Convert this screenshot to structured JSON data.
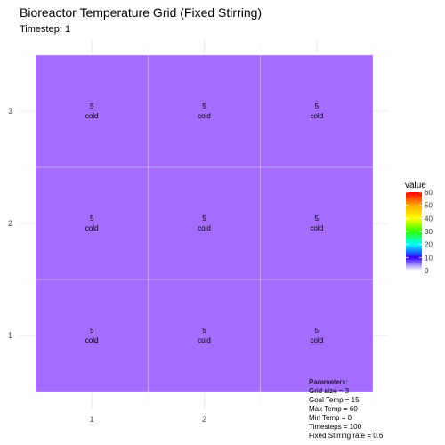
{
  "title": "Bioreactor Temperature Grid (Fixed Stirring)",
  "subtitle": "Timestep: 1",
  "chart_data": {
    "type": "heatmap",
    "x": [
      "1",
      "2",
      "3"
    ],
    "y": [
      "1",
      "2",
      "3"
    ],
    "x_tick_labels": [
      "1",
      "2"
    ],
    "y_tick_labels": [
      "1",
      "2",
      "3"
    ],
    "cells": [
      {
        "x": 1,
        "y": 3,
        "value": 5,
        "label": "cold"
      },
      {
        "x": 2,
        "y": 3,
        "value": 5,
        "label": "cold"
      },
      {
        "x": 3,
        "y": 3,
        "value": 5,
        "label": "cold"
      },
      {
        "x": 1,
        "y": 2,
        "value": 5,
        "label": "cold"
      },
      {
        "x": 2,
        "y": 2,
        "value": 5,
        "label": "cold"
      },
      {
        "x": 3,
        "y": 2,
        "value": 5,
        "label": "cold"
      },
      {
        "x": 1,
        "y": 1,
        "value": 5,
        "label": "cold"
      },
      {
        "x": 2,
        "y": 1,
        "value": 5,
        "label": "cold"
      },
      {
        "x": 3,
        "y": 1,
        "value": 5,
        "label": "cold"
      }
    ],
    "cell_color": "#a46cff",
    "legend": {
      "title": "value",
      "ticks": [
        0,
        10,
        20,
        30,
        40,
        50,
        60
      ],
      "range": [
        0,
        60
      ],
      "placement": "right",
      "gradient": [
        "#ffffff",
        "#3300ff",
        "#00ffff",
        "#33ff00",
        "#ffff00",
        "#ffaa00",
        "#ff0000"
      ]
    },
    "grid": true
  },
  "parameters": [
    "Parameters:",
    "Grid size = 3",
    "Goal Temp = 15",
    "Max Temp = 60",
    "Min Temp = 0",
    "Timesteps = 100",
    "Fixed Stirring rate = 0.6"
  ]
}
